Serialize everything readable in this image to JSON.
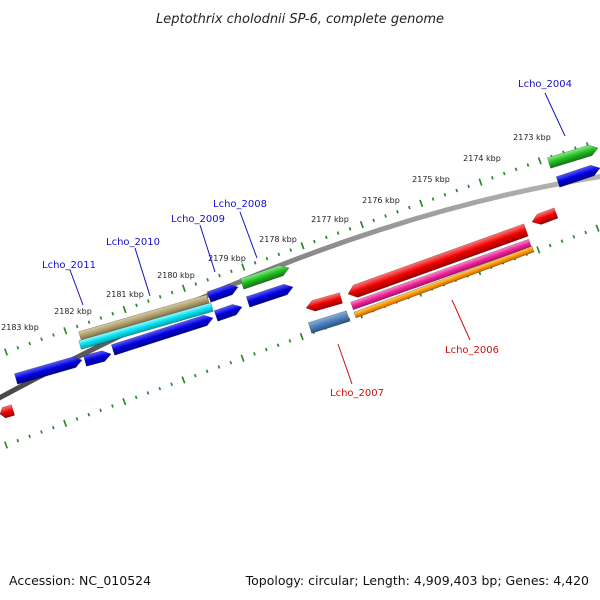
{
  "title": "Leptothrix cholodnii SP-6, complete genome",
  "footer": {
    "accession": "Accession: NC_010524",
    "topology": "Topology: circular; Length: 4,909,403 bp; Genes: 4,420"
  },
  "scale": {
    "tick_labels": [
      "2173 kbp",
      "2174 kbp",
      "2175 kbp",
      "2176 kbp",
      "2177 kbp",
      "2178 kbp",
      "2179 kbp",
      "2180 kbp",
      "2181 kbp",
      "2182 kbp",
      "2183 kbp"
    ]
  },
  "genes": {
    "forward_labels": [
      "Lcho_2004",
      "Lcho_2008",
      "Lcho_2009",
      "Lcho_2010",
      "Lcho_2011"
    ],
    "reverse_labels": [
      "Lcho_2006",
      "Lcho_2007"
    ]
  },
  "colors": {
    "forward_label": "#1111cc",
    "reverse_label": "#cc1111",
    "cds_blue": "#0000dd",
    "gene_green": "#22bb22",
    "gene_red": "#ee0000",
    "tan": "#b0a070",
    "cyan": "#00e0f0",
    "magenta": "#ee2299",
    "orange": "#ff9900",
    "steel_blue": "#4a7db8",
    "backbone": "#777777",
    "ticks": "#2a8a2a"
  }
}
